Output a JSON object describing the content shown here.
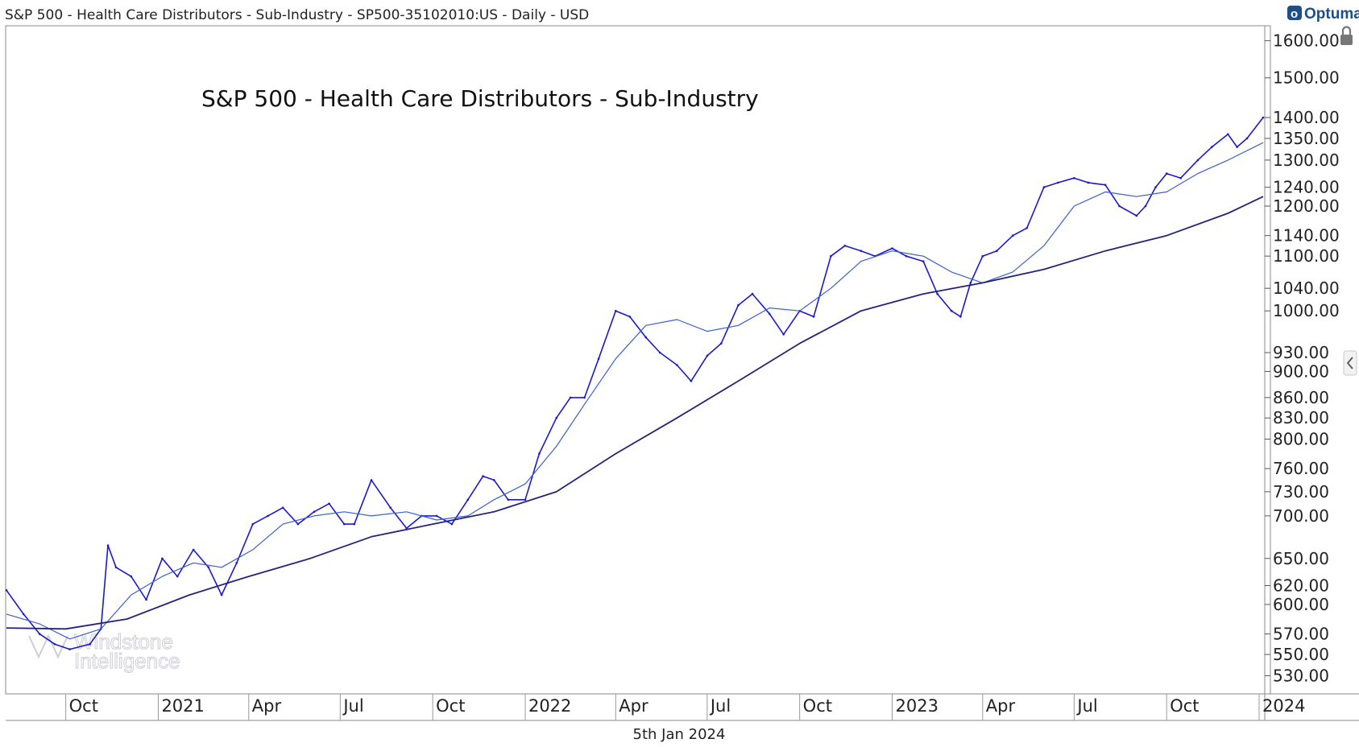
{
  "header": {
    "title": "S&P 500 - Health Care Distributors - Sub-Industry - SP500-35102010:US - Daily - USD",
    "logo_text": "Optuma"
  },
  "footer": {
    "date": "5th Jan 2024"
  },
  "watermark": {
    "line1": "Windstone",
    "line2": "Intelligence"
  },
  "chart_data": {
    "type": "line",
    "title": "S&P 500 - Health Care Distributors - Sub-Industry",
    "xlabel": "",
    "ylabel": "",
    "y_scale": "log",
    "ylim": [
      515,
      1640
    ],
    "y_ticks": [
      1600,
      1500,
      1400,
      1350,
      1300,
      1240,
      1200,
      1140,
      1100,
      1040,
      1000,
      930,
      900,
      860,
      830,
      800,
      760,
      730,
      700,
      650,
      620,
      600,
      570,
      550,
      530
    ],
    "y_tick_labels": [
      "1600.00",
      "1500.00",
      "1400.00",
      "1350.00",
      "1300.00",
      "1240.00",
      "1200.00",
      "1140.00",
      "1100.00",
      "1040.00",
      "1000.00",
      "930.00",
      "900.00",
      "860.00",
      "830.00",
      "800.00",
      "760.00",
      "730.00",
      "700.00",
      "650.00",
      "620.00",
      "600.00",
      "570.00",
      "550.00",
      "530.00"
    ],
    "xlim": [
      "2020-08-03",
      "2024-01-05"
    ],
    "x_ticks": [
      {
        "label": "Oct",
        "date": "2020-10-01"
      },
      {
        "label": "2021",
        "date": "2021-01-01"
      },
      {
        "label": "Apr",
        "date": "2021-04-01"
      },
      {
        "label": "Jul",
        "date": "2021-07-01"
      },
      {
        "label": "Oct",
        "date": "2021-10-01"
      },
      {
        "label": "2022",
        "date": "2022-01-01"
      },
      {
        "label": "Apr",
        "date": "2022-04-01"
      },
      {
        "label": "Jul",
        "date": "2022-07-01"
      },
      {
        "label": "Oct",
        "date": "2022-10-01"
      },
      {
        "label": "2023",
        "date": "2023-01-01"
      },
      {
        "label": "Apr",
        "date": "2023-04-01"
      },
      {
        "label": "Jul",
        "date": "2023-07-01"
      },
      {
        "label": "Oct",
        "date": "2023-10-01"
      },
      {
        "label": "2024",
        "date": "2024-01-01"
      }
    ],
    "grid": false,
    "colors": {
      "price": "#1a1acc",
      "ma_short": "#3a5fd0",
      "ma_long": "#23237a"
    },
    "series": [
      {
        "name": "",
        "style": "price",
        "x": [
          "2020-08-03",
          "2020-08-20",
          "2020-09-05",
          "2020-09-20",
          "2020-10-05",
          "2020-10-25",
          "2020-11-05",
          "2020-11-12",
          "2020-11-20",
          "2020-12-05",
          "2020-12-20",
          "2021-01-05",
          "2021-01-20",
          "2021-02-05",
          "2021-02-20",
          "2021-03-05",
          "2021-03-20",
          "2021-04-05",
          "2021-04-20",
          "2021-05-05",
          "2021-05-20",
          "2021-06-05",
          "2021-06-20",
          "2021-07-05",
          "2021-07-15",
          "2021-08-01",
          "2021-08-20",
          "2021-09-05",
          "2021-09-20",
          "2021-10-05",
          "2021-10-20",
          "2021-11-05",
          "2021-11-20",
          "2021-12-01",
          "2021-12-15",
          "2022-01-01",
          "2022-01-15",
          "2022-02-01",
          "2022-02-15",
          "2022-03-01",
          "2022-03-15",
          "2022-04-01",
          "2022-04-15",
          "2022-05-01",
          "2022-05-15",
          "2022-06-01",
          "2022-06-15",
          "2022-07-01",
          "2022-07-15",
          "2022-08-01",
          "2022-08-15",
          "2022-09-01",
          "2022-09-15",
          "2022-10-01",
          "2022-10-15",
          "2022-11-01",
          "2022-11-15",
          "2022-12-01",
          "2022-12-15",
          "2023-01-01",
          "2023-01-15",
          "2023-02-01",
          "2023-02-15",
          "2023-03-01",
          "2023-03-10",
          "2023-03-20",
          "2023-04-01",
          "2023-04-15",
          "2023-05-01",
          "2023-05-15",
          "2023-06-01",
          "2023-06-15",
          "2023-07-01",
          "2023-07-15",
          "2023-08-01",
          "2023-08-15",
          "2023-09-01",
          "2023-09-10",
          "2023-09-20",
          "2023-10-01",
          "2023-10-15",
          "2023-11-01",
          "2023-11-15",
          "2023-12-01",
          "2023-12-10",
          "2023-12-20",
          "2024-01-05"
        ],
        "values": [
          615,
          590,
          570,
          560,
          555,
          560,
          575,
          665,
          640,
          630,
          605,
          650,
          630,
          660,
          640,
          610,
          645,
          690,
          700,
          710,
          690,
          705,
          715,
          690,
          690,
          745,
          710,
          685,
          700,
          700,
          690,
          720,
          750,
          745,
          720,
          720,
          780,
          830,
          860,
          860,
          920,
          1000,
          990,
          955,
          930,
          910,
          885,
          925,
          945,
          1010,
          1030,
          995,
          960,
          1000,
          990,
          1100,
          1120,
          1110,
          1100,
          1115,
          1100,
          1090,
          1030,
          1000,
          990,
          1050,
          1100,
          1110,
          1140,
          1155,
          1240,
          1250,
          1260,
          1250,
          1245,
          1200,
          1180,
          1200,
          1240,
          1270,
          1260,
          1300,
          1330,
          1360,
          1330,
          1350,
          1400
        ]
      },
      {
        "name": "",
        "style": "ma_short",
        "x": [
          "2020-08-03",
          "2020-09-05",
          "2020-10-05",
          "2020-11-05",
          "2020-12-05",
          "2021-01-05",
          "2021-02-05",
          "2021-03-05",
          "2021-04-05",
          "2021-05-05",
          "2021-06-05",
          "2021-07-05",
          "2021-08-01",
          "2021-09-05",
          "2021-10-05",
          "2021-11-05",
          "2021-12-01",
          "2022-01-01",
          "2022-02-01",
          "2022-03-01",
          "2022-04-01",
          "2022-05-01",
          "2022-06-01",
          "2022-07-01",
          "2022-08-01",
          "2022-09-01",
          "2022-10-01",
          "2022-11-01",
          "2022-12-01",
          "2023-01-01",
          "2023-02-01",
          "2023-03-01",
          "2023-04-01",
          "2023-05-01",
          "2023-06-01",
          "2023-07-01",
          "2023-08-01",
          "2023-09-01",
          "2023-10-01",
          "2023-11-01",
          "2023-12-01",
          "2024-01-05"
        ],
        "values": [
          590,
          580,
          565,
          575,
          610,
          630,
          645,
          640,
          660,
          690,
          700,
          705,
          700,
          705,
          695,
          700,
          720,
          740,
          790,
          850,
          920,
          975,
          985,
          965,
          975,
          1005,
          1000,
          1040,
          1090,
          1110,
          1100,
          1070,
          1050,
          1070,
          1120,
          1200,
          1230,
          1220,
          1230,
          1270,
          1300,
          1340
        ]
      },
      {
        "name": "",
        "style": "ma_long",
        "x": [
          "2020-08-03",
          "2020-10-01",
          "2020-12-01",
          "2021-02-01",
          "2021-04-01",
          "2021-06-01",
          "2021-08-01",
          "2021-10-01",
          "2021-12-01",
          "2022-02-01",
          "2022-04-01",
          "2022-06-01",
          "2022-08-01",
          "2022-10-01",
          "2022-12-01",
          "2023-02-01",
          "2023-04-01",
          "2023-06-01",
          "2023-08-01",
          "2023-10-01",
          "2023-12-01",
          "2024-01-05"
        ],
        "values": [
          576,
          575,
          585,
          610,
          630,
          650,
          675,
          690,
          705,
          730,
          780,
          830,
          885,
          945,
          1000,
          1030,
          1050,
          1075,
          1110,
          1140,
          1185,
          1220
        ]
      }
    ]
  }
}
